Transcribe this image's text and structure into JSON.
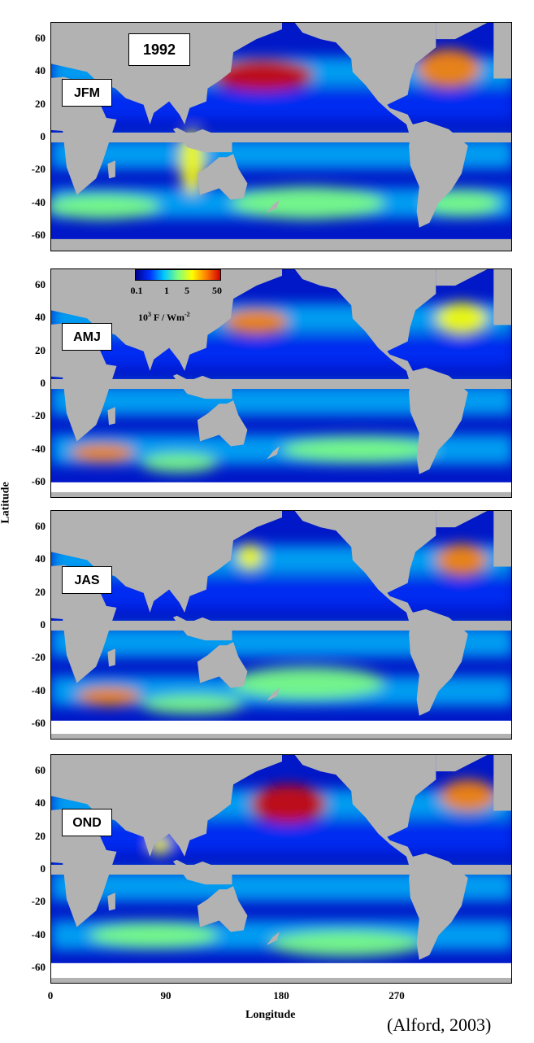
{
  "figure": {
    "year_label": "1992",
    "ylabel": "Latitude",
    "xlabel": "Longitude",
    "credit": "(Alford, 2003)",
    "y_ticks": [
      "60",
      "40",
      "20",
      "0",
      "-20",
      "-40",
      "-60"
    ],
    "x_ticks": [
      "0",
      "90",
      "180",
      "270"
    ],
    "colorbar": {
      "ticks": [
        "0.1",
        "1",
        "5",
        "50"
      ],
      "units_main": "10",
      "units_exp": "3",
      "units_rest": " F / Wm",
      "units_exp2": "-2",
      "scale": "log",
      "colormap": [
        "#00008f",
        "#0030ff",
        "#00c8ff",
        "#7fff7f",
        "#ffff00",
        "#ff8000",
        "#d00000"
      ]
    },
    "colors": {
      "land": "#b2b2b2",
      "no_data": "#ffffff",
      "ocean_low": "#0018c8",
      "ocean_mid": "#00c8ff",
      "ocean_high": "#ff8000"
    },
    "panels": [
      {
        "season": "JFM"
      },
      {
        "season": "AMJ"
      },
      {
        "season": "JAS"
      },
      {
        "season": "OND"
      }
    ]
  }
}
